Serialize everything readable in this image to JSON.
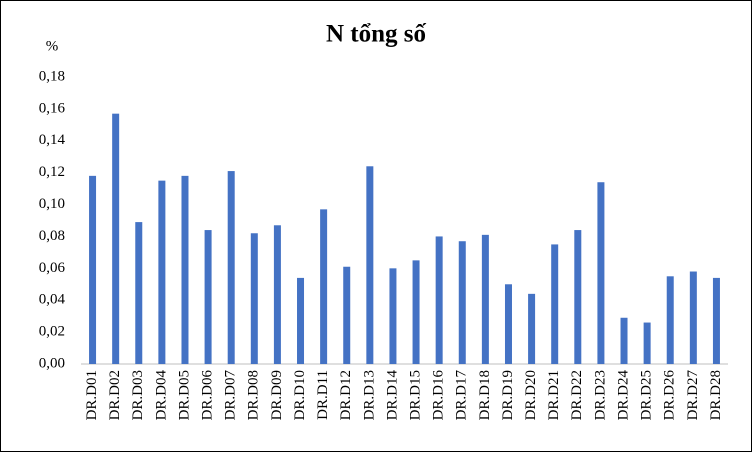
{
  "chart_data": {
    "type": "bar",
    "title": "N tổng số",
    "y_label": "%",
    "categories": [
      "DR.D01",
      "DR.D02",
      "DR.D03",
      "DR.D04",
      "DR.D05",
      "DR.D06",
      "DR.D07",
      "DR.D08",
      "DR.D09",
      "DR.D10",
      "DR.D11",
      "DR.D12",
      "DR.D13",
      "DR.D14",
      "DR.D15",
      "DR.D16",
      "DR.D17",
      "DR.D18",
      "DR.D19",
      "DR.D20",
      "DR.D21",
      "DR.D22",
      "DR.D23",
      "DR.D24",
      "DR.D25",
      "DR.D26",
      "DR.D27",
      "DR.D28"
    ],
    "values": [
      0.118,
      0.157,
      0.089,
      0.115,
      0.118,
      0.084,
      0.121,
      0.082,
      0.087,
      0.054,
      0.097,
      0.061,
      0.124,
      0.06,
      0.065,
      0.08,
      0.077,
      0.081,
      0.05,
      0.044,
      0.075,
      0.084,
      0.114,
      0.029,
      0.026,
      0.055,
      0.058,
      0.054
    ],
    "color": "#4472c4",
    "ylim": [
      0,
      0.18
    ],
    "yticks": [
      {
        "value": 0,
        "label": "0,00"
      },
      {
        "value": 0.02,
        "label": "0,02"
      },
      {
        "value": 0.04,
        "label": "0,04"
      },
      {
        "value": 0.06,
        "label": "0,06"
      },
      {
        "value": 0.08,
        "label": "0,08"
      },
      {
        "value": 0.1,
        "label": "0,10"
      },
      {
        "value": 0.12,
        "label": "0,12"
      },
      {
        "value": 0.14,
        "label": "0,14"
      },
      {
        "value": 0.16,
        "label": "0,16"
      },
      {
        "value": 0.18,
        "label": "0,18"
      }
    ],
    "grid": false
  }
}
